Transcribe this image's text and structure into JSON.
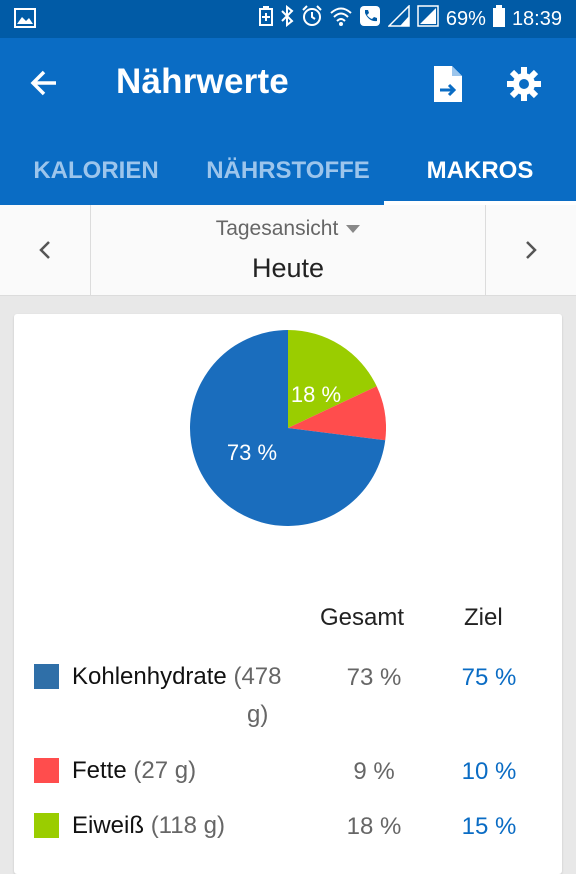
{
  "status_bar": {
    "battery": "69%",
    "time": "18:39",
    "icons": [
      "image-icon",
      "battery-saver-icon",
      "bluetooth-icon",
      "alarm-icon",
      "wifi-icon",
      "call-icon",
      "signal-icon",
      "signal-icon",
      "battery-icon"
    ]
  },
  "app_bar": {
    "title": "Nährwerte",
    "back_icon": "arrow-left-icon",
    "actions": [
      "document-export-icon",
      "gear-icon"
    ]
  },
  "tabs": [
    {
      "label": "KALORIEN",
      "active": false
    },
    {
      "label": "NÄHRSTOFFE",
      "active": false
    },
    {
      "label": "MAKROS",
      "active": true
    }
  ],
  "date_nav": {
    "view_label": "Tagesansicht",
    "date_label": "Heute",
    "prev_icon": "chevron-left-icon",
    "next_icon": "chevron-right-icon"
  },
  "chart_data": {
    "type": "pie",
    "slices": [
      {
        "label": "Kohlenhydrate",
        "value": 73,
        "color": "#1a6dbd",
        "shown_label": "73 %"
      },
      {
        "label": "Fette",
        "value": 9,
        "color": "#ff4d4d",
        "shown_label": ""
      },
      {
        "label": "Eiweiß",
        "value": 18,
        "color": "#9acd00",
        "shown_label": "18 %"
      }
    ]
  },
  "macro_table": {
    "header_total": "Gesamt",
    "header_goal": "Ziel",
    "rows": [
      {
        "name": "Kohlenhydrate",
        "grams_line1": "(478",
        "grams_line2": "g)",
        "total": "73 %",
        "goal": "75 %",
        "color": "#2f6fa8"
      },
      {
        "name": "Fette",
        "grams": "(27 g)",
        "total": "9 %",
        "goal": "10 %",
        "color": "#ff4d4d"
      },
      {
        "name": "Eiweiß",
        "grams": "(118 g)",
        "total": "18 %",
        "goal": "15 %",
        "color": "#9acd00"
      }
    ]
  },
  "colors": {
    "status_bar": "#015ba6",
    "app_bar": "#0a6cc4",
    "tab_inactive": "#9cc5ec",
    "goal_text": "#0a6cc4"
  }
}
